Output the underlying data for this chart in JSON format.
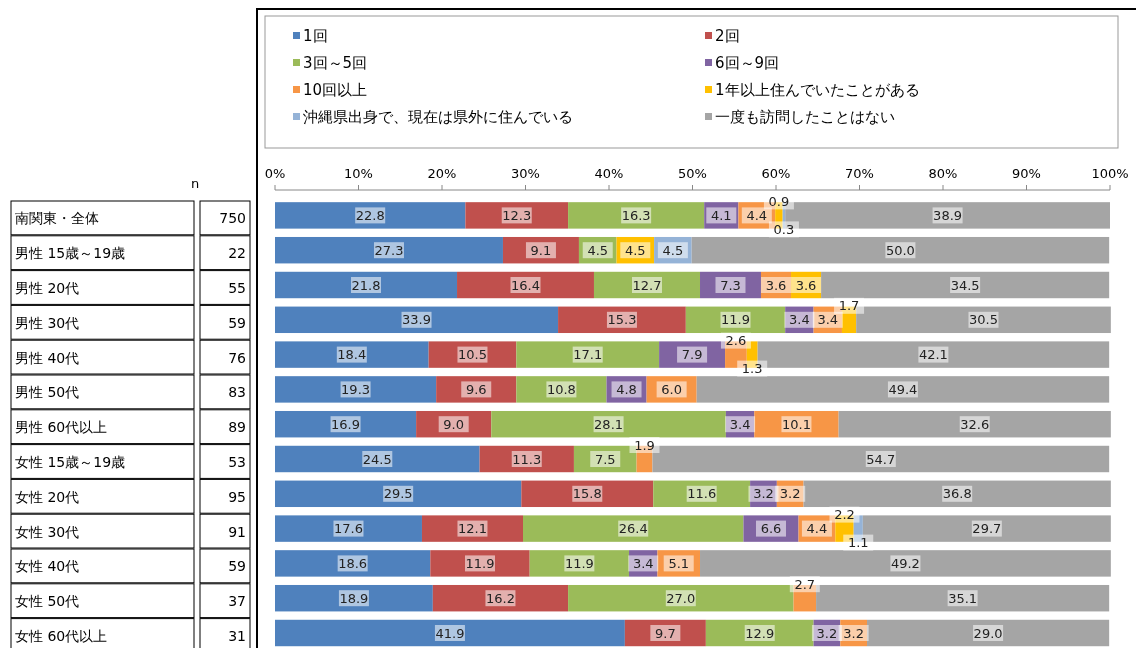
{
  "chart_data": {
    "type": "bar",
    "orientation": "horizontal",
    "stacked": true,
    "legend": "top",
    "categories": [
      "南関東・全体",
      "男性 15歳～19歳",
      "男性 20代",
      "男性 30代",
      "男性 40代",
      "男性 50代",
      "男性 60代以上",
      "女性 15歳～19歳",
      "女性 20代",
      "女性 30代",
      "女性 40代",
      "女性 50代",
      "女性 60代以上"
    ],
    "xlim": [
      0,
      100
    ],
    "xticks": [
      {
        "value": 0,
        "label": "0%"
      },
      {
        "value": 10,
        "label": "10%"
      },
      {
        "value": 20,
        "label": "20%"
      },
      {
        "value": 30,
        "label": "30%"
      },
      {
        "value": 40,
        "label": "40%"
      },
      {
        "value": 50,
        "label": "50%"
      },
      {
        "value": 60,
        "label": "60%"
      },
      {
        "value": 70,
        "label": "70%"
      },
      {
        "value": 80,
        "label": "80%"
      },
      {
        "value": 90,
        "label": "90%"
      },
      {
        "value": 100,
        "label": "100%"
      }
    ],
    "annotations": [
      "n",
      "750",
      "22",
      "55",
      "59",
      "76",
      "83",
      "89",
      "53",
      "95",
      "91",
      "59",
      "37",
      "31"
    ],
    "series": [
      {
        "name": "1回",
        "color": "#4f81bd",
        "values": [
          22.8,
          27.3,
          21.8,
          33.9,
          18.4,
          19.3,
          16.9,
          24.5,
          29.5,
          17.6,
          18.6,
          18.9,
          41.9
        ],
        "value_labels": [
          "22.8",
          "27.3",
          "21.8",
          "33.9",
          "18.4",
          "19.3",
          "16.9",
          "24.5",
          "29.5",
          "17.6",
          "18.6",
          "18.9",
          "41.9"
        ]
      },
      {
        "name": "2回",
        "color": "#c0504d",
        "values": [
          12.3,
          9.1,
          16.4,
          15.3,
          10.5,
          9.6,
          9.0,
          11.3,
          15.8,
          12.1,
          11.9,
          16.2,
          9.7
        ],
        "value_labels": [
          "12.3",
          "9.1",
          "16.4",
          "15.3",
          "10.5",
          "9.6",
          "9.0",
          "11.3",
          "15.8",
          "12.1",
          "11.9",
          "16.2",
          "9.7"
        ]
      },
      {
        "name": "3回～5回",
        "color": "#9bbb59",
        "values": [
          16.3,
          4.5,
          12.7,
          11.9,
          17.1,
          10.8,
          28.1,
          7.5,
          11.6,
          26.4,
          11.9,
          27.0,
          12.9
        ],
        "value_labels": [
          "16.3",
          "4.5",
          "12.7",
          "11.9",
          "17.1",
          "10.8",
          "28.1",
          "7.5",
          "11.6",
          "26.4",
          "11.9",
          "27.0",
          "12.9"
        ]
      },
      {
        "name": "6回～9回",
        "color": "#8064a2",
        "values": [
          4.1,
          null,
          7.3,
          3.4,
          7.9,
          4.8,
          3.4,
          null,
          3.2,
          6.6,
          3.4,
          null,
          3.2
        ],
        "value_labels": [
          "4.1",
          null,
          "7.3",
          "3.4",
          "7.9",
          "4.8",
          "3.4",
          null,
          "3.2",
          "6.6",
          "3.4",
          null,
          "3.2"
        ]
      },
      {
        "name": "10回以上",
        "color": "#f79646",
        "values": [
          4.4,
          null,
          3.6,
          3.4,
          2.6,
          6.0,
          10.1,
          1.9,
          3.2,
          4.4,
          5.1,
          2.7,
          3.2
        ],
        "value_labels": [
          "4.4",
          null,
          "3.6",
          "3.4",
          "2.6",
          "6.0",
          "10.1",
          "1.9",
          "3.2",
          "4.4",
          "5.1",
          "2.7",
          "3.2"
        ]
      },
      {
        "name": "1年以上住んでいたことがある",
        "color": "#ffc000",
        "values": [
          0.9,
          4.5,
          3.6,
          1.7,
          1.3,
          null,
          null,
          null,
          null,
          2.2,
          null,
          null,
          null
        ],
        "value_labels": [
          "0.9",
          "4.5",
          "3.6",
          "1.7",
          "1.3",
          null,
          null,
          null,
          null,
          "2.2",
          null,
          null,
          null
        ]
      },
      {
        "name": "沖縄県出身で、現在は県外に住んでいる",
        "color": "#95b3d7",
        "values": [
          0.3,
          4.5,
          null,
          null,
          null,
          null,
          null,
          null,
          null,
          1.1,
          null,
          null,
          null
        ],
        "value_labels": [
          "0.3",
          "4.5",
          null,
          null,
          null,
          null,
          null,
          null,
          null,
          "1.1",
          null,
          null,
          null
        ]
      },
      {
        "name": "一度も訪問したことはない",
        "color": "#a5a5a5",
        "values": [
          38.9,
          50.0,
          34.5,
          30.5,
          42.1,
          49.4,
          32.6,
          54.7,
          36.8,
          29.7,
          49.2,
          35.1,
          29.0
        ],
        "value_labels": [
          "38.9",
          "50.0",
          "34.5",
          "30.5",
          "42.1",
          "49.4",
          "32.6",
          "54.7",
          "36.8",
          "29.7",
          "49.2",
          "35.1",
          "29.0"
        ]
      }
    ]
  }
}
